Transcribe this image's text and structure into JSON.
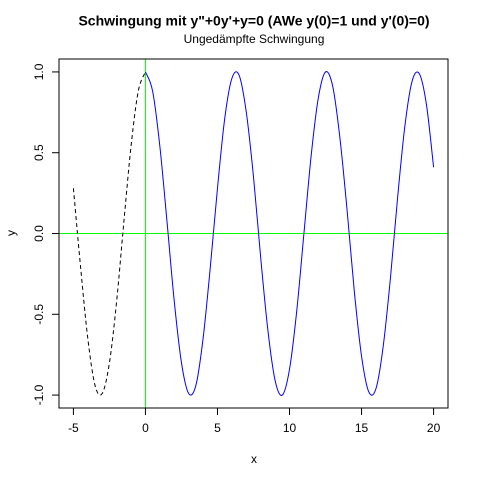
{
  "chart_data": {
    "type": "line",
    "title": "Schwingung mit y\"+0y'+y=0 (AWe y(0)=1 und y'(0)=0)",
    "subtitle": "Ungedämpfte Schwingung",
    "x_label": "x",
    "y_label": "y",
    "xlim": [
      -6,
      21
    ],
    "ylim": [
      -1.08,
      1.08
    ],
    "xticks": [
      -5,
      0,
      5,
      10,
      15,
      20
    ],
    "yticks": [
      {
        "value": -1,
        "label": "-1.0"
      },
      {
        "value": -0.5,
        "label": "-0.5"
      },
      {
        "value": 0,
        "label": "0.0"
      },
      {
        "value": 0.5,
        "label": "0.5"
      },
      {
        "value": 1,
        "label": "1.0"
      }
    ],
    "reference_lines": [
      {
        "axis": "x",
        "value": 0,
        "color": "#00ff00"
      },
      {
        "axis": "y",
        "value": 0,
        "color": "#00ff00"
      }
    ],
    "series": [
      {
        "color": "#000000",
        "linestyle": "dashed",
        "x": [
          -5,
          -4.5,
          -4,
          -3.5,
          -3,
          -2.5,
          -2,
          -1.5,
          -1,
          -0.5,
          0
        ],
        "values": [
          0.28,
          -0.21,
          -0.65,
          -0.94,
          -0.99,
          -0.8,
          -0.42,
          0.07,
          0.54,
          0.88,
          1
        ]
      },
      {
        "color": "#0000ff",
        "linestyle": "solid",
        "x": [
          0,
          0.5,
          1,
          1.5,
          2,
          2.5,
          3,
          3.5,
          4,
          4.5,
          5,
          5.5,
          6,
          6.5,
          7,
          7.5,
          8,
          8.5,
          9,
          9.5,
          10,
          10.5,
          11,
          11.5,
          12,
          12.5,
          13,
          13.5,
          14,
          14.5,
          15,
          15.5,
          16,
          16.5,
          17,
          17.5,
          18,
          18.5,
          19,
          19.5,
          20
        ],
        "values": [
          1,
          0.88,
          0.54,
          0.07,
          -0.42,
          -0.8,
          -0.99,
          -0.94,
          -0.65,
          -0.21,
          0.28,
          0.71,
          0.96,
          0.98,
          0.75,
          0.35,
          -0.15,
          -0.6,
          -0.91,
          -1,
          -0.84,
          -0.48,
          0,
          0.48,
          0.84,
          1,
          0.91,
          0.59,
          0.14,
          -0.36,
          -0.76,
          -0.98,
          -0.96,
          -0.7,
          -0.28,
          0.22,
          0.66,
          0.94,
          0.99,
          0.8,
          0.41
        ]
      }
    ]
  }
}
